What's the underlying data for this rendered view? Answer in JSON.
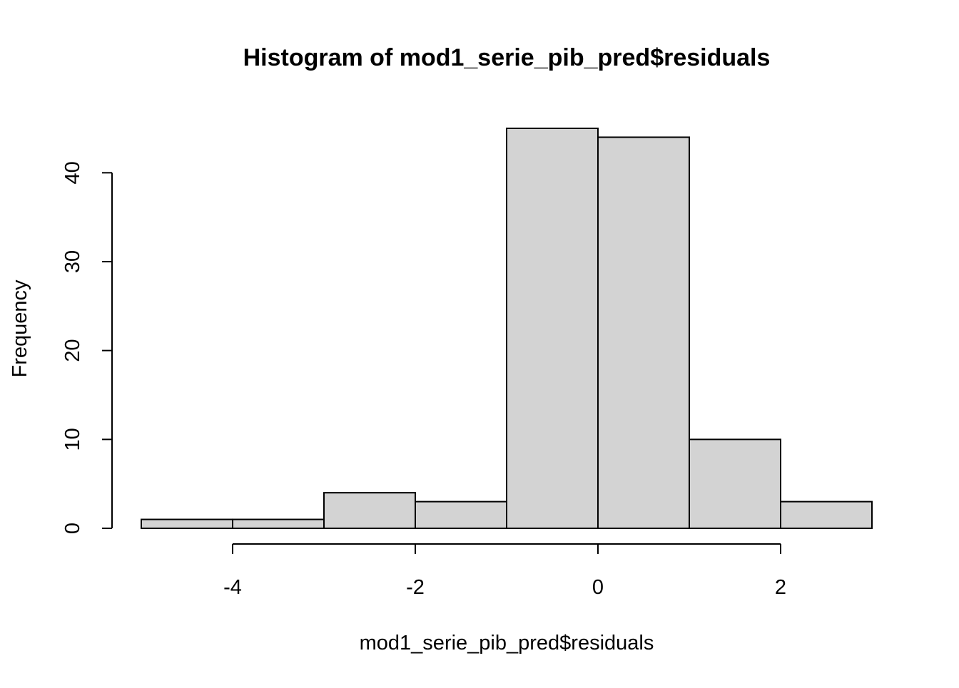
{
  "chart_data": {
    "type": "histogram",
    "title": "Histogram of mod1_serie_pib_pred$residuals",
    "xlabel": "mod1_serie_pib_pred$residuals",
    "ylabel": "Frequency",
    "bins": [
      {
        "start": -5,
        "end": -4,
        "count": 1
      },
      {
        "start": -4,
        "end": -3,
        "count": 1
      },
      {
        "start": -3,
        "end": -2,
        "count": 4
      },
      {
        "start": -2,
        "end": -1,
        "count": 3
      },
      {
        "start": -1,
        "end": 0,
        "count": 45
      },
      {
        "start": 0,
        "end": 1,
        "count": 44
      },
      {
        "start": 1,
        "end": 2,
        "count": 10
      },
      {
        "start": 2,
        "end": 3,
        "count": 3
      }
    ],
    "x_ticks": [
      -4,
      -2,
      0,
      2
    ],
    "y_ticks": [
      0,
      10,
      20,
      30,
      40
    ],
    "xlim": [
      -5,
      3
    ],
    "ylim": [
      0,
      45
    ],
    "grid": false,
    "bar_color": "#d3d3d3",
    "bar_border_color": "#000000"
  }
}
